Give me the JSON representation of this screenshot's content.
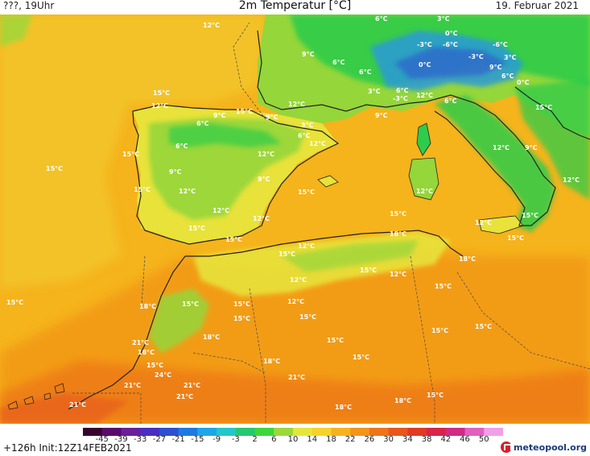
{
  "header": {
    "run_label": "???, 19Uhr",
    "title": "2m Temperatur [°C]",
    "date": "19. Februar 2021"
  },
  "footer": {
    "init_label": "+126h  Init:12Z14FEB2021",
    "brand": "meteopool.org"
  },
  "colors": {
    "sea_warm": "#f5b31c",
    "sea_hot": "#f29a18",
    "sahara": "#ee7a16",
    "sahara_deep": "#e9621a",
    "land_mild": "#e8e23a",
    "land_cool": "#95d63a",
    "land_cold": "#2ecc4a",
    "alps_cold": "#2a9ad8",
    "coast": "#222222"
  },
  "colorbar": {
    "ticks": [
      "-45",
      "-39",
      "-33",
      "-27",
      "-21",
      "-15",
      "-9",
      "-3",
      "2",
      "6",
      "10",
      "14",
      "18",
      "22",
      "26",
      "30",
      "34",
      "38",
      "42",
      "46",
      "50"
    ],
    "colors": [
      "#3a0030",
      "#5a0a6a",
      "#6a1e9a",
      "#4a2ec0",
      "#2d4fd0",
      "#1e7ae0",
      "#1da6e6",
      "#22c8c8",
      "#25c870",
      "#3fd63a",
      "#9bd83a",
      "#e6e63a",
      "#f6d22a",
      "#f6b21e",
      "#f29518",
      "#ee7418",
      "#e8561c",
      "#e03a24",
      "#d8244a",
      "#d02a86",
      "#e060c0",
      "#f0a0e6"
    ]
  },
  "map_labels": [
    "12°C",
    "6°C",
    "3°C",
    "9°C",
    "6°C",
    "6°C",
    "0°C",
    "-3°C",
    "-6°C",
    "-6°C",
    "-3°C",
    "0°C",
    "3°C",
    "9°C",
    "6°C",
    "0°C",
    "3°C",
    "6°C",
    "-3°C",
    "12°C",
    "6°C",
    "15°C",
    "12°C",
    "15°C",
    "6°C",
    "9°C",
    "9°C",
    "3°C",
    "6°C",
    "12°C",
    "12°C",
    "9°C",
    "15°C",
    "6°C",
    "9°C",
    "12°C",
    "12°C",
    "9°C",
    "12°C",
    "15°C",
    "15°C",
    "15°C",
    "12°C",
    "12°C",
    "12°C",
    "15°C",
    "9°C",
    "12°C",
    "15°C",
    "15°C",
    "15°C",
    "12°C",
    "15°C",
    "18°C",
    "15°C",
    "15°C",
    "12°C",
    "18°C",
    "15°C",
    "12°C",
    "15°C",
    "15°C",
    "12°C",
    "12°C",
    "15°C",
    "15°C",
    "15°C",
    "18°C",
    "15°C",
    "15°C",
    "15°C",
    "21°C",
    "18°C",
    "15°C",
    "24°C",
    "18°C",
    "21°C",
    "21°C",
    "21°C",
    "18°C",
    "21°C",
    "18°C",
    "15°C",
    "15°C",
    "18°C",
    "21°C",
    "15°C"
  ]
}
